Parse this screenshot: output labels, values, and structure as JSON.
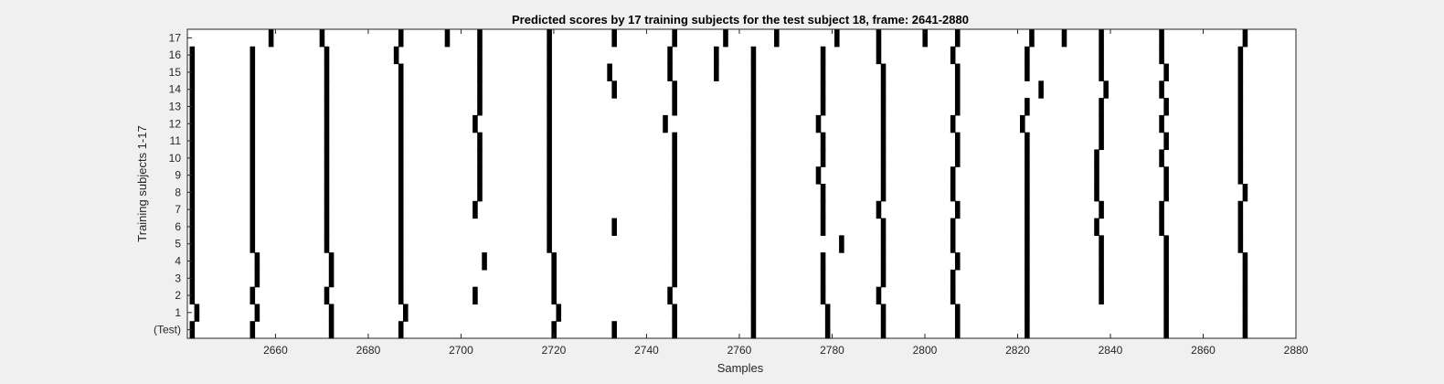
{
  "chart_data": {
    "type": "heatmap",
    "title": "Predicted scores by 17 training subjects for the test subject 18, frame: 2641-2880",
    "xlabel": "Samples",
    "ylabel": "Training subjects 1-17",
    "xlim": [
      2641,
      2880
    ],
    "xticks": [
      2660,
      2680,
      2700,
      2720,
      2740,
      2760,
      2780,
      2800,
      2820,
      2840,
      2860,
      2880
    ],
    "ylabels": [
      "(Test)",
      "1",
      "2",
      "3",
      "4",
      "5",
      "6",
      "7",
      "8",
      "9",
      "10",
      "11",
      "12",
      "13",
      "14",
      "15",
      "16",
      "17"
    ],
    "background_color": "#ffffff",
    "mark_color": "#000000",
    "rows": [
      {
        "label": "(Test)",
        "x": [
          2642,
          2655,
          2672,
          2687,
          2720,
          2733,
          2746,
          2763,
          2779,
          2791,
          2807,
          2822,
          2852,
          2869
        ]
      },
      {
        "label": "1",
        "x": [
          2643,
          2656,
          2672,
          2688,
          2721,
          2746,
          2763,
          2779,
          2791,
          2807,
          2822,
          2852,
          2869
        ]
      },
      {
        "label": "2",
        "x": [
          2642,
          2655,
          2671,
          2687,
          2703,
          2720,
          2745,
          2763,
          2778,
          2790,
          2806,
          2822,
          2838,
          2852,
          2869
        ]
      },
      {
        "label": "3",
        "x": [
          2642,
          2656,
          2672,
          2687,
          2720,
          2746,
          2763,
          2778,
          2791,
          2806,
          2822,
          2838,
          2852,
          2869
        ]
      },
      {
        "label": "4",
        "x": [
          2642,
          2656,
          2672,
          2687,
          2705,
          2720,
          2746,
          2763,
          2778,
          2791,
          2807,
          2822,
          2838,
          2852,
          2869
        ]
      },
      {
        "label": "5",
        "x": [
          2642,
          2655,
          2671,
          2687,
          2719,
          2746,
          2763,
          2782,
          2791,
          2806,
          2822,
          2838,
          2852,
          2868
        ]
      },
      {
        "label": "6",
        "x": [
          2642,
          2655,
          2671,
          2687,
          2719,
          2733,
          2746,
          2763,
          2778,
          2791,
          2806,
          2822,
          2837,
          2851,
          2868
        ]
      },
      {
        "label": "7",
        "x": [
          2642,
          2655,
          2671,
          2687,
          2703,
          2719,
          2746,
          2763,
          2778,
          2790,
          2807,
          2822,
          2838,
          2851,
          2868
        ]
      },
      {
        "label": "8",
        "x": [
          2642,
          2655,
          2671,
          2687,
          2704,
          2719,
          2746,
          2763,
          2778,
          2791,
          2806,
          2822,
          2837,
          2852,
          2869
        ]
      },
      {
        "label": "9",
        "x": [
          2642,
          2655,
          2671,
          2687,
          2704,
          2719,
          2746,
          2763,
          2777,
          2791,
          2806,
          2822,
          2837,
          2852,
          2868
        ]
      },
      {
        "label": "10",
        "x": [
          2642,
          2655,
          2671,
          2687,
          2704,
          2719,
          2746,
          2763,
          2778,
          2791,
          2807,
          2822,
          2837,
          2851,
          2868
        ]
      },
      {
        "label": "11",
        "x": [
          2642,
          2655,
          2671,
          2687,
          2704,
          2719,
          2746,
          2763,
          2778,
          2791,
          2807,
          2822,
          2838,
          2852,
          2868
        ]
      },
      {
        "label": "12",
        "x": [
          2642,
          2655,
          2671,
          2687,
          2703,
          2719,
          2744,
          2763,
          2777,
          2791,
          2806,
          2821,
          2838,
          2851,
          2868
        ]
      },
      {
        "label": "13",
        "x": [
          2642,
          2655,
          2671,
          2687,
          2704,
          2719,
          2746,
          2763,
          2778,
          2791,
          2807,
          2822,
          2838,
          2852,
          2868
        ]
      },
      {
        "label": "14",
        "x": [
          2642,
          2655,
          2671,
          2687,
          2704,
          2719,
          2733,
          2746,
          2763,
          2778,
          2791,
          2807,
          2825,
          2839,
          2851,
          2868
        ]
      },
      {
        "label": "15",
        "x": [
          2642,
          2655,
          2671,
          2687,
          2704,
          2719,
          2732,
          2745,
          2755,
          2763,
          2778,
          2791,
          2807,
          2822,
          2838,
          2852,
          2868
        ]
      },
      {
        "label": "16",
        "x": [
          2642,
          2655,
          2671,
          2686,
          2704,
          2719,
          2745,
          2755,
          2763,
          2778,
          2790,
          2806,
          2822,
          2838,
          2851,
          2868
        ]
      },
      {
        "label": "17",
        "x": [
          2659,
          2670,
          2687,
          2697,
          2704,
          2719,
          2733,
          2746,
          2757,
          2768,
          2781,
          2790,
          2800,
          2807,
          2823,
          2830,
          2838,
          2851,
          2869
        ]
      }
    ]
  }
}
